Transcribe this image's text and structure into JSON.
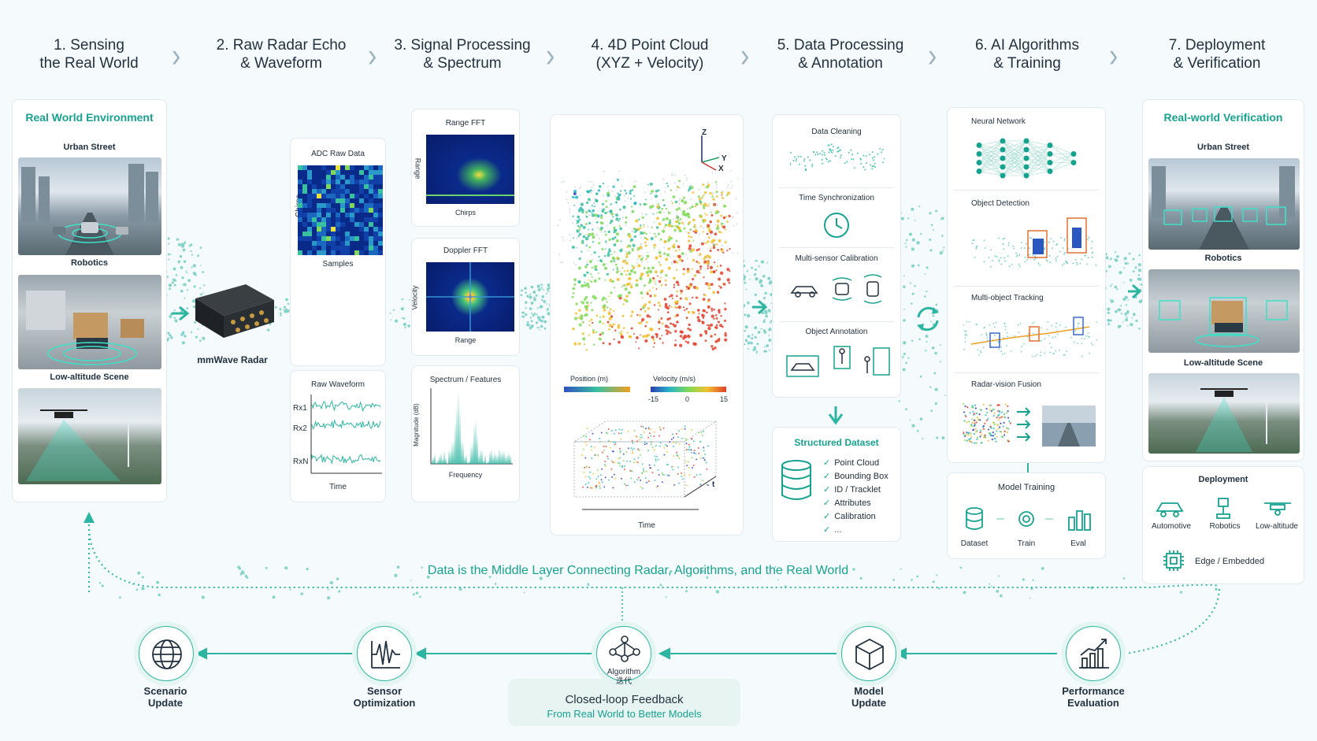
{
  "steps": [
    {
      "line1": "1. Sensing",
      "line2": "the Real World"
    },
    {
      "line1": "2. Raw Radar Echo",
      "line2": "& Waveform"
    },
    {
      "line1": "3. Signal Processing",
      "line2": "& Spectrum"
    },
    {
      "line1": "4. 4D Point Cloud",
      "line2": "(XYZ + Velocity)"
    },
    {
      "line1": "5. Data Processing",
      "line2": "& Annotation"
    },
    {
      "line1": "6. AI Algorithms",
      "line2": "& Training"
    },
    {
      "line1": "7. Deployment",
      "line2": "& Verification"
    }
  ],
  "real_world": {
    "title": "Real World Environment",
    "scenes": [
      "Urban Street",
      "Robotics",
      "Low-altitude Scene"
    ]
  },
  "radar": {
    "label": "mmWave Radar"
  },
  "raw": {
    "adc_title": "ADC Raw Data",
    "adc_y": "Chirps",
    "adc_x": "Samples",
    "wave_title": "Raw Waveform",
    "channels": [
      "Rx1",
      "Rx2",
      "RxN"
    ],
    "wave_x": "Time"
  },
  "signal": {
    "range_title": "Range FFT",
    "range_y": "Range",
    "range_x": "Chirps",
    "doppler_title": "Doppler FFT",
    "doppler_y": "Velocity",
    "doppler_x": "Range",
    "spectrum_title": "Spectrum / Features",
    "spectrum_y": "Magnitude (dB)",
    "spectrum_x": "Frequency"
  },
  "cloud": {
    "axes": [
      "Z",
      "Y",
      "X"
    ],
    "pos_label": "Position (m)",
    "vel_label": "Velocity (m/s)",
    "vel_ticks": [
      "-15",
      "0",
      "15"
    ],
    "t_label": "t",
    "time_label": "Time"
  },
  "processing": {
    "items": [
      "Data Cleaning",
      "Time Synchronization",
      "Multi-sensor Calibration",
      "Object Annotation"
    ],
    "dataset_title": "Structured Dataset",
    "dataset_items": [
      "Point Cloud",
      "Bounding Box",
      "ID / Tracklet",
      "Attributes",
      "Calibration",
      "..."
    ]
  },
  "ai": {
    "items": [
      "Neural Network",
      "Object Detection",
      "Multi-object Tracking",
      "Radar-vision Fusion"
    ],
    "training_title": "Model Training",
    "training_items": [
      "Dataset",
      "Train",
      "Eval"
    ]
  },
  "deploy": {
    "title": "Real-world Verification",
    "scenes": [
      "Urban Street",
      "Robotics",
      "Low-altitude Scene"
    ],
    "deployment_title": "Deployment",
    "targets": [
      "Automotive",
      "Robotics",
      "Low-altitude"
    ],
    "edge": "Edge / Embedded"
  },
  "middle_text": "Data is the Middle Layer Connecting Radar, Algorithms, and the Real World",
  "loop": {
    "nodes": [
      {
        "l1": "Scenario",
        "l2": "Update"
      },
      {
        "l1": "Sensor",
        "l2": "Optimization"
      },
      {
        "l1": "Algorithm",
        "l2": "迭代"
      },
      {
        "l1": "Model",
        "l2": "Update"
      },
      {
        "l1": "Performance",
        "l2": "Evaluation"
      }
    ],
    "title": "Closed-loop Feedback",
    "subtitle": "From Real World to Better Models"
  },
  "colors": {
    "accent": "#17a28f",
    "teal": "#2cb5a0"
  }
}
